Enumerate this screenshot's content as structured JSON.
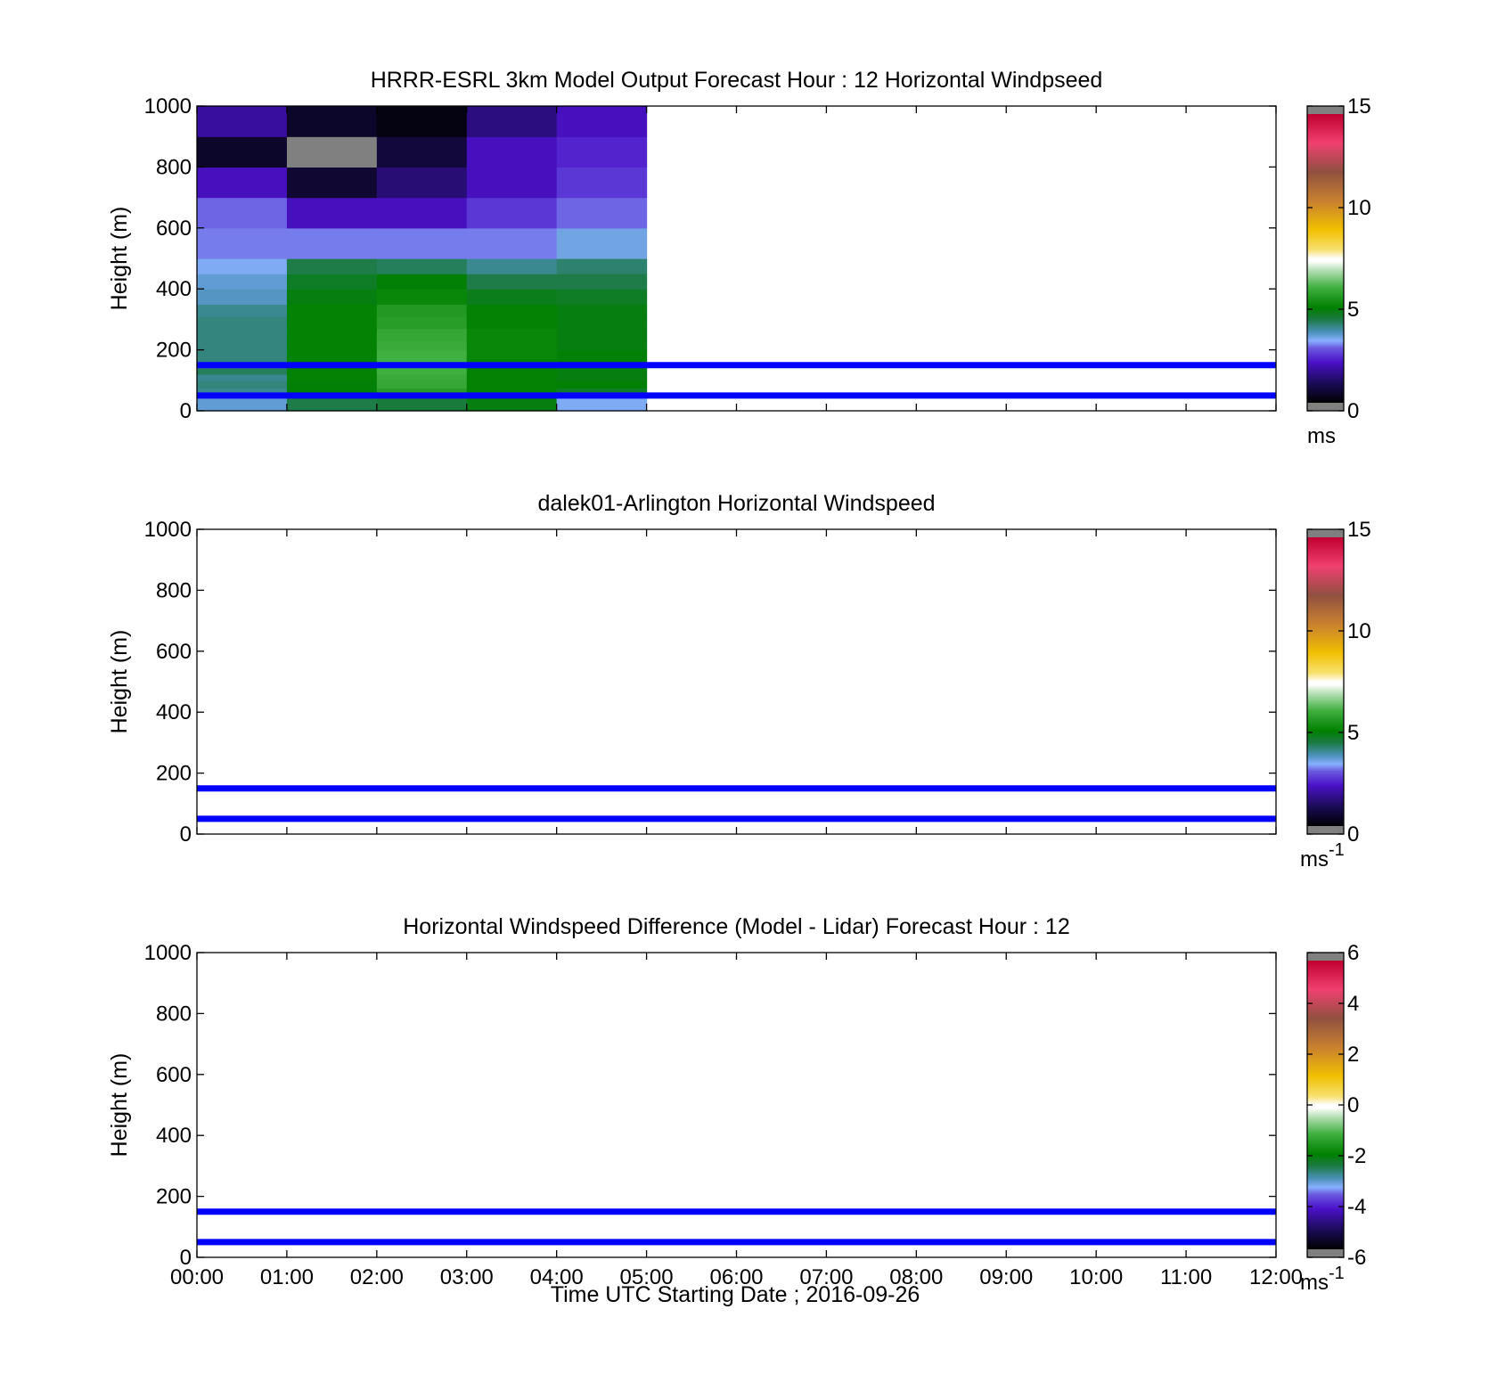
{
  "x_tick_labels": [
    "00:00",
    "01:00",
    "02:00",
    "03:00",
    "04:00",
    "05:00",
    "06:00",
    "07:00",
    "08:00",
    "09:00",
    "10:00",
    "11:00",
    "12:00"
  ],
  "x_axis_label": "Time UTC  Starting Date ; 2016-09-26",
  "reference_lines_m": [
    150,
    50
  ],
  "reference_line_color": "#0000ff",
  "chart_data": [
    {
      "type": "heatmap",
      "title": "HRRR-ESRL 3km Model Output   Forecast Hour : 12 Horizontal Windpseed",
      "ylabel": "Height (m)",
      "ylim": [
        0,
        1000
      ],
      "y_ticks": [
        0,
        200,
        400,
        600,
        800,
        1000
      ],
      "x_range_hours": [
        0,
        12
      ],
      "colorbar": {
        "min": 0,
        "max": 15,
        "ticks": [
          0,
          5,
          10,
          15
        ],
        "unit": "ms",
        "unit_sup": ""
      },
      "cells": {
        "columns_start_hour": [
          0,
          1,
          2,
          3,
          4
        ],
        "column_width_hours": 1,
        "rows": [
          {
            "bottom": 0,
            "top": 25,
            "values": [
              3.5,
              4.3,
              4.4,
              4.8,
              3.3
            ]
          },
          {
            "bottom": 25,
            "top": 50,
            "values": [
              3.5,
              4.3,
              4.4,
              4.8,
              3.3
            ]
          },
          {
            "bottom": 50,
            "top": 75,
            "values": [
              3.9,
              4.9,
              5.6,
              5.0,
              4.6
            ]
          },
          {
            "bottom": 75,
            "top": 100,
            "values": [
              4.0,
              4.9,
              5.8,
              5.0,
              4.9
            ]
          },
          {
            "bottom": 100,
            "top": 120,
            "values": [
              3.9,
              5.0,
              5.9,
              5.0,
              4.8
            ]
          },
          {
            "bottom": 120,
            "top": 140,
            "values": [
              4.2,
              5.0,
              6.0,
              5.0,
              4.8
            ]
          },
          {
            "bottom": 140,
            "top": 170,
            "values": [
              4.0,
              5.0,
              6.0,
              5.0,
              4.9
            ]
          },
          {
            "bottom": 170,
            "top": 200,
            "values": [
              4.0,
              5.0,
              6.0,
              5.1,
              4.9
            ]
          },
          {
            "bottom": 200,
            "top": 230,
            "values": [
              4.0,
              5.0,
              5.9,
              5.1,
              4.8
            ]
          },
          {
            "bottom": 230,
            "top": 270,
            "values": [
              4.0,
              5.0,
              5.8,
              5.1,
              4.8
            ]
          },
          {
            "bottom": 270,
            "top": 310,
            "values": [
              4.0,
              5.0,
              5.6,
              5.0,
              4.8
            ]
          },
          {
            "bottom": 310,
            "top": 350,
            "values": [
              3.9,
              5.0,
              5.5,
              5.0,
              4.8
            ]
          },
          {
            "bottom": 350,
            "top": 400,
            "values": [
              3.6,
              4.8,
              5.1,
              4.7,
              4.6
            ]
          },
          {
            "bottom": 400,
            "top": 450,
            "values": [
              3.5,
              4.6,
              4.9,
              4.3,
              4.3
            ]
          },
          {
            "bottom": 450,
            "top": 500,
            "values": [
              3.3,
              4.3,
              4.2,
              3.9,
              4.1
            ]
          },
          {
            "bottom": 500,
            "top": 600,
            "values": [
              3.0,
              3.0,
              3.0,
              3.0,
              3.4
            ]
          },
          {
            "bottom": 600,
            "top": 700,
            "values": [
              2.9,
              2.0,
              2.0,
              2.5,
              2.9
            ]
          },
          {
            "bottom": 700,
            "top": 800,
            "values": [
              2.0,
              0.6,
              1.3,
              2.0,
              2.5
            ]
          },
          {
            "bottom": 800,
            "top": 900,
            "values": [
              0.5,
              null,
              0.7,
              2.0,
              2.3
            ]
          },
          {
            "bottom": 900,
            "top": 1000,
            "values": [
              1.7,
              0.5,
              0.2,
              1.4,
              2.0
            ]
          }
        ],
        "missing_color": "#808080"
      }
    },
    {
      "type": "heatmap",
      "title": "dalek01-Arlington  Horizontal Windspeed",
      "ylabel": "Height (m)",
      "ylim": [
        0,
        1000
      ],
      "y_ticks": [
        0,
        200,
        400,
        600,
        800,
        1000
      ],
      "x_range_hours": [
        0,
        12
      ],
      "colorbar": {
        "min": 0,
        "max": 15,
        "ticks": [
          0,
          5,
          10,
          15
        ],
        "unit": "ms",
        "unit_sup": "-1"
      },
      "cells": {
        "rows": []
      }
    },
    {
      "type": "heatmap",
      "title": "Horizontal Windspeed Difference (Model - Lidar) Forecast Hour : 12",
      "ylabel": "Height (m)",
      "ylim": [
        0,
        1000
      ],
      "y_ticks": [
        0,
        200,
        400,
        600,
        800,
        1000
      ],
      "x_range_hours": [
        0,
        12
      ],
      "colorbar": {
        "min": -6,
        "max": 6,
        "ticks": [
          -6,
          -4,
          -2,
          0,
          2,
          4,
          6
        ],
        "unit": "ms",
        "unit_sup": "-1"
      },
      "cells": {
        "rows": []
      }
    }
  ]
}
